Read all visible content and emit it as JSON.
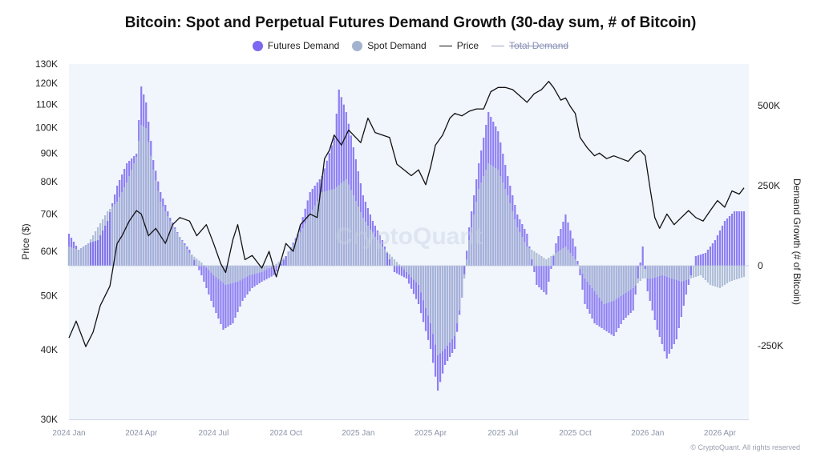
{
  "chart_data": {
    "type": "bar",
    "title": "Bitcoin: Spot and Perpetual Futures Demand Growth (30-day sum, # of Bitcoin)",
    "legend": [
      {
        "name": "Futures Demand",
        "color": "#7b68f0",
        "kind": "dot"
      },
      {
        "name": "Spot Demand",
        "color": "#a3b3cf",
        "kind": "dot"
      },
      {
        "name": "Price",
        "color": "#111111",
        "kind": "line"
      },
      {
        "name": "Total Demand",
        "color": "#9aa3c4",
        "kind": "line",
        "hidden": true
      }
    ],
    "left_axis": {
      "label": "Price ($)",
      "scale": "log",
      "range": [
        30000,
        130000
      ],
      "ticks": [
        30000,
        40000,
        50000,
        60000,
        70000,
        80000,
        90000,
        100000,
        110000,
        120000,
        130000
      ],
      "tick_labels": [
        "30K",
        "40K",
        "50K",
        "60K",
        "70K",
        "80K",
        "90K",
        "100K",
        "110K",
        "120K",
        "130K"
      ]
    },
    "right_axis": {
      "label": "Demand Growth (# of Bitcoin)",
      "scale": "linear",
      "range": [
        -480000,
        630000
      ],
      "ticks": [
        -250000,
        0,
        250000,
        500000
      ],
      "tick_labels": [
        "-250K",
        "0",
        "250K",
        "500K"
      ]
    },
    "x_axis": {
      "range_months": [
        0,
        28.2
      ],
      "ticks": [
        0,
        3,
        6,
        9,
        12,
        15,
        18,
        21,
        24,
        27
      ],
      "tick_labels": [
        "2024 Jan",
        "2024 Apr",
        "2024 Jul",
        "2024 Oct",
        "2025 Jan",
        "2025 Apr",
        "2025 Jul",
        "2025 Oct",
        "2026 Jan",
        "2026 Apr"
      ]
    },
    "price_series": [
      [
        0.0,
        42000
      ],
      [
        0.3,
        45000
      ],
      [
        0.7,
        40500
      ],
      [
        1.0,
        43000
      ],
      [
        1.3,
        48000
      ],
      [
        1.7,
        52000
      ],
      [
        2.0,
        62000
      ],
      [
        2.2,
        64000
      ],
      [
        2.5,
        68000
      ],
      [
        2.8,
        71000
      ],
      [
        3.0,
        70000
      ],
      [
        3.3,
        64000
      ],
      [
        3.6,
        66000
      ],
      [
        4.0,
        62000
      ],
      [
        4.3,
        67000
      ],
      [
        4.6,
        69000
      ],
      [
        5.0,
        68000
      ],
      [
        5.3,
        64000
      ],
      [
        5.7,
        67000
      ],
      [
        6.0,
        62000
      ],
      [
        6.3,
        57000
      ],
      [
        6.5,
        55000
      ],
      [
        6.8,
        63000
      ],
      [
        7.0,
        67000
      ],
      [
        7.3,
        58000
      ],
      [
        7.6,
        59000
      ],
      [
        8.0,
        56000
      ],
      [
        8.3,
        60000
      ],
      [
        8.6,
        54000
      ],
      [
        9.0,
        62000
      ],
      [
        9.3,
        60000
      ],
      [
        9.6,
        67000
      ],
      [
        10.0,
        70000
      ],
      [
        10.3,
        69000
      ],
      [
        10.6,
        88000
      ],
      [
        10.8,
        91000
      ],
      [
        11.0,
        97000
      ],
      [
        11.3,
        93000
      ],
      [
        11.6,
        99000
      ],
      [
        11.9,
        96000
      ],
      [
        12.1,
        94000
      ],
      [
        12.4,
        104000
      ],
      [
        12.7,
        98000
      ],
      [
        13.0,
        97000
      ],
      [
        13.3,
        96000
      ],
      [
        13.6,
        86000
      ],
      [
        13.9,
        84000
      ],
      [
        14.2,
        82000
      ],
      [
        14.5,
        84000
      ],
      [
        14.8,
        79000
      ],
      [
        15.0,
        85000
      ],
      [
        15.2,
        93000
      ],
      [
        15.5,
        97000
      ],
      [
        15.8,
        104000
      ],
      [
        16.0,
        106000
      ],
      [
        16.3,
        105000
      ],
      [
        16.6,
        107000
      ],
      [
        16.9,
        108000
      ],
      [
        17.2,
        108000
      ],
      [
        17.5,
        116000
      ],
      [
        17.8,
        118000
      ],
      [
        18.1,
        118000
      ],
      [
        18.4,
        117000
      ],
      [
        18.7,
        114000
      ],
      [
        19.0,
        111000
      ],
      [
        19.3,
        115000
      ],
      [
        19.6,
        117000
      ],
      [
        19.9,
        121000
      ],
      [
        20.1,
        118000
      ],
      [
        20.4,
        112000
      ],
      [
        20.6,
        113000
      ],
      [
        20.8,
        109000
      ],
      [
        21.0,
        106000
      ],
      [
        21.2,
        96000
      ],
      [
        21.5,
        92000
      ],
      [
        21.8,
        89000
      ],
      [
        22.0,
        90000
      ],
      [
        22.3,
        88000
      ],
      [
        22.6,
        89000
      ],
      [
        22.9,
        88000
      ],
      [
        23.2,
        87000
      ],
      [
        23.5,
        90000
      ],
      [
        23.7,
        91000
      ],
      [
        23.9,
        89000
      ],
      [
        24.1,
        78000
      ],
      [
        24.3,
        69000
      ],
      [
        24.5,
        66000
      ],
      [
        24.8,
        70000
      ],
      [
        25.1,
        67000
      ],
      [
        25.4,
        69000
      ],
      [
        25.7,
        71000
      ],
      [
        26.0,
        69000
      ],
      [
        26.3,
        68000
      ],
      [
        26.6,
        71000
      ],
      [
        26.9,
        74000
      ],
      [
        27.2,
        72000
      ],
      [
        27.5,
        77000
      ],
      [
        27.8,
        76000
      ],
      [
        28.0,
        78000
      ]
    ],
    "spot_series": [
      [
        0.0,
        60000
      ],
      [
        0.4,
        50000
      ],
      [
        0.8,
        70000
      ],
      [
        1.2,
        120000
      ],
      [
        1.6,
        170000
      ],
      [
        2.0,
        200000
      ],
      [
        2.4,
        260000
      ],
      [
        2.8,
        340000
      ],
      [
        3.0,
        440000
      ],
      [
        3.2,
        430000
      ],
      [
        3.5,
        300000
      ],
      [
        3.8,
        200000
      ],
      [
        4.2,
        140000
      ],
      [
        4.6,
        90000
      ],
      [
        5.0,
        40000
      ],
      [
        5.5,
        10000
      ],
      [
        6.0,
        -30000
      ],
      [
        6.5,
        -60000
      ],
      [
        7.0,
        -50000
      ],
      [
        7.5,
        -30000
      ],
      [
        8.0,
        -20000
      ],
      [
        8.5,
        0
      ],
      [
        9.0,
        30000
      ],
      [
        9.5,
        90000
      ],
      [
        10.0,
        160000
      ],
      [
        10.5,
        230000
      ],
      [
        11.0,
        240000
      ],
      [
        11.5,
        270000
      ],
      [
        11.8,
        220000
      ],
      [
        12.2,
        150000
      ],
      [
        12.6,
        100000
      ],
      [
        13.0,
        60000
      ],
      [
        13.5,
        20000
      ],
      [
        14.0,
        -20000
      ],
      [
        14.5,
        -60000
      ],
      [
        15.0,
        -180000
      ],
      [
        15.3,
        -280000
      ],
      [
        15.6,
        -260000
      ],
      [
        16.0,
        -220000
      ],
      [
        16.3,
        -100000
      ],
      [
        16.6,
        80000
      ],
      [
        17.0,
        240000
      ],
      [
        17.4,
        320000
      ],
      [
        17.8,
        300000
      ],
      [
        18.2,
        220000
      ],
      [
        18.6,
        120000
      ],
      [
        19.0,
        60000
      ],
      [
        19.4,
        40000
      ],
      [
        19.8,
        20000
      ],
      [
        20.2,
        40000
      ],
      [
        20.6,
        60000
      ],
      [
        21.0,
        20000
      ],
      [
        21.4,
        -40000
      ],
      [
        21.8,
        -80000
      ],
      [
        22.2,
        -120000
      ],
      [
        22.6,
        -110000
      ],
      [
        23.0,
        -90000
      ],
      [
        23.4,
        -70000
      ],
      [
        23.8,
        -40000
      ],
      [
        24.2,
        -40000
      ],
      [
        24.6,
        -30000
      ],
      [
        25.0,
        -40000
      ],
      [
        25.4,
        -50000
      ],
      [
        25.8,
        -40000
      ],
      [
        26.2,
        -30000
      ],
      [
        26.6,
        -60000
      ],
      [
        27.0,
        -70000
      ],
      [
        27.4,
        -50000
      ],
      [
        27.8,
        -40000
      ],
      [
        28.0,
        -35000
      ]
    ],
    "futures_series": [
      [
        0.0,
        100000
      ],
      [
        0.4,
        50000
      ],
      [
        0.8,
        70000
      ],
      [
        1.2,
        80000
      ],
      [
        1.6,
        140000
      ],
      [
        2.0,
        250000
      ],
      [
        2.4,
        320000
      ],
      [
        2.8,
        350000
      ],
      [
        3.0,
        560000
      ],
      [
        3.2,
        510000
      ],
      [
        3.5,
        330000
      ],
      [
        3.8,
        230000
      ],
      [
        4.2,
        150000
      ],
      [
        4.6,
        90000
      ],
      [
        5.0,
        50000
      ],
      [
        5.5,
        -30000
      ],
      [
        6.0,
        -130000
      ],
      [
        6.4,
        -200000
      ],
      [
        6.8,
        -180000
      ],
      [
        7.2,
        -110000
      ],
      [
        7.6,
        -70000
      ],
      [
        8.0,
        -50000
      ],
      [
        8.5,
        -30000
      ],
      [
        9.0,
        30000
      ],
      [
        9.5,
        100000
      ],
      [
        10.0,
        230000
      ],
      [
        10.5,
        280000
      ],
      [
        11.0,
        400000
      ],
      [
        11.2,
        550000
      ],
      [
        11.5,
        480000
      ],
      [
        11.8,
        370000
      ],
      [
        12.2,
        220000
      ],
      [
        12.6,
        140000
      ],
      [
        13.0,
        80000
      ],
      [
        13.5,
        -20000
      ],
      [
        14.0,
        -40000
      ],
      [
        14.5,
        -120000
      ],
      [
        15.0,
        -260000
      ],
      [
        15.3,
        -390000
      ],
      [
        15.6,
        -310000
      ],
      [
        16.0,
        -260000
      ],
      [
        16.3,
        -100000
      ],
      [
        16.6,
        120000
      ],
      [
        17.0,
        320000
      ],
      [
        17.4,
        480000
      ],
      [
        17.8,
        420000
      ],
      [
        18.2,
        280000
      ],
      [
        18.6,
        160000
      ],
      [
        19.0,
        100000
      ],
      [
        19.4,
        -60000
      ],
      [
        19.8,
        -90000
      ],
      [
        20.2,
        70000
      ],
      [
        20.6,
        160000
      ],
      [
        21.0,
        60000
      ],
      [
        21.4,
        -120000
      ],
      [
        21.8,
        -180000
      ],
      [
        22.2,
        -200000
      ],
      [
        22.6,
        -220000
      ],
      [
        23.0,
        -170000
      ],
      [
        23.4,
        -140000
      ],
      [
        23.8,
        60000
      ],
      [
        24.0,
        -80000
      ],
      [
        24.4,
        -200000
      ],
      [
        24.8,
        -290000
      ],
      [
        25.2,
        -230000
      ],
      [
        25.6,
        -90000
      ],
      [
        26.0,
        30000
      ],
      [
        26.4,
        40000
      ],
      [
        26.8,
        80000
      ],
      [
        27.2,
        140000
      ],
      [
        27.6,
        170000
      ],
      [
        28.0,
        170000
      ]
    ]
  },
  "watermark": "CryptoQuant",
  "copyright": "© CryptoQuant. All rights reserved"
}
